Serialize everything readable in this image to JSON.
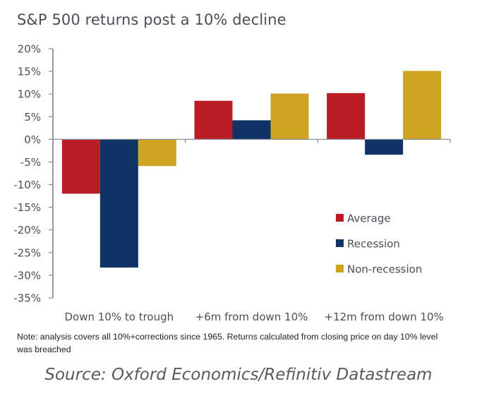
{
  "chart_data": {
    "type": "bar",
    "title": "S&P 500 returns post a 10% decline",
    "xlabel": "",
    "ylabel": "",
    "categories": [
      "Down 10% to trough",
      "+6m from down 10%",
      "+12m from down 10%"
    ],
    "series": [
      {
        "name": "Average",
        "color": "#b81c25",
        "values": [
          -12.0,
          8.5,
          10.2
        ]
      },
      {
        "name": "Recession",
        "color": "#103366",
        "values": [
          -28.3,
          4.2,
          -3.4
        ]
      },
      {
        "name": "Non-recession",
        "color": "#cea324",
        "values": [
          -5.9,
          10.1,
          15.1
        ]
      }
    ],
    "ylim": [
      -35,
      20
    ],
    "yticks": [
      20,
      15,
      10,
      5,
      0,
      -5,
      -10,
      -15,
      -20,
      -25,
      -30,
      -35
    ],
    "ytick_format": "percent",
    "grid": false,
    "legend": "right-middle"
  },
  "note": "Note: analysis covers all 10%+corrections since 1965. Returns calculated from closing price on day 10% level was breached",
  "source": "Source: Oxford Economics/Refinitiv Datastream"
}
